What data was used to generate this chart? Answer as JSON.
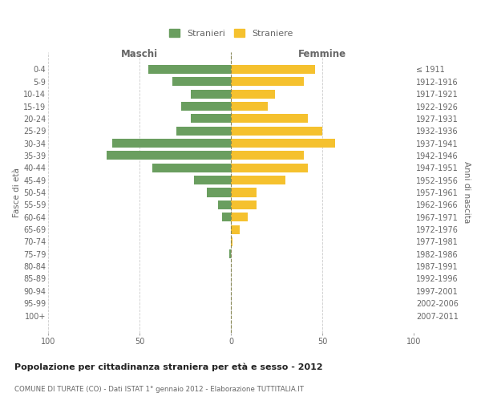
{
  "age_groups": [
    "0-4",
    "5-9",
    "10-14",
    "15-19",
    "20-24",
    "25-29",
    "30-34",
    "35-39",
    "40-44",
    "45-49",
    "50-54",
    "55-59",
    "60-64",
    "65-69",
    "70-74",
    "75-79",
    "80-84",
    "85-89",
    "90-94",
    "95-99",
    "100+"
  ],
  "birth_years": [
    "2007-2011",
    "2002-2006",
    "1997-2001",
    "1992-1996",
    "1987-1991",
    "1982-1986",
    "1977-1981",
    "1972-1976",
    "1967-1971",
    "1962-1966",
    "1957-1961",
    "1952-1956",
    "1947-1951",
    "1942-1946",
    "1937-1941",
    "1932-1936",
    "1927-1931",
    "1922-1926",
    "1917-1921",
    "1912-1916",
    "≤ 1911"
  ],
  "maschi": [
    45,
    32,
    22,
    27,
    22,
    30,
    65,
    68,
    43,
    20,
    13,
    7,
    5,
    0,
    0,
    1,
    0,
    0,
    0,
    0,
    0
  ],
  "femmine": [
    46,
    40,
    24,
    20,
    42,
    50,
    57,
    40,
    42,
    30,
    14,
    14,
    9,
    5,
    1,
    0,
    0,
    0,
    0,
    0,
    0
  ],
  "male_color": "#6a9e5f",
  "female_color": "#f5c12e",
  "bar_height": 0.72,
  "xlim": 100,
  "title": "Popolazione per cittadinanza straniera per età e sesso - 2012",
  "subtitle": "COMUNE DI TURATE (CO) - Dati ISTAT 1° gennaio 2012 - Elaborazione TUTTITALIA.IT",
  "ylabel_left": "Fasce di età",
  "ylabel_right": "Anni di nascita",
  "xlabel_left": "Maschi",
  "xlabel_right": "Femmine",
  "legend_male": "Stranieri",
  "legend_female": "Straniere",
  "background_color": "#ffffff",
  "grid_color": "#cccccc",
  "center_line_color": "#888855",
  "axis_label_color": "#666666",
  "tick_color": "#aaaaaa",
  "title_color": "#222222",
  "subtitle_color": "#666666"
}
